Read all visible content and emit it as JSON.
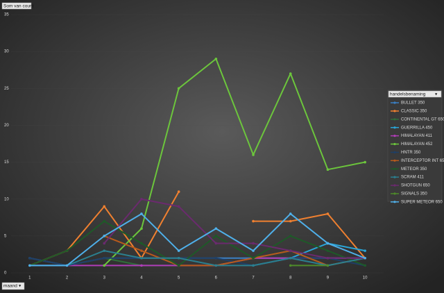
{
  "chart_data": {
    "type": "line",
    "value_field": "Som van count",
    "axis_field": "maand",
    "legend_title": "handelsbenaming",
    "x": [
      1,
      2,
      3,
      4,
      5,
      6,
      7,
      8,
      9,
      10
    ],
    "xlim": [
      0.5,
      10.5
    ],
    "xticks": [
      1,
      2,
      3,
      4,
      5,
      6,
      7,
      8,
      9,
      10
    ],
    "ylim": [
      0,
      35
    ],
    "yticks": [
      0,
      5,
      10,
      15,
      20,
      25,
      30,
      35
    ],
    "series": [
      {
        "name": "BULLET 350",
        "color": "#3a7fc4",
        "values": [
          2,
          1,
          2,
          2,
          2,
          2,
          2,
          2,
          2,
          2
        ]
      },
      {
        "name": "CLASSIC 350",
        "color": "#f08030",
        "values": [
          1,
          3,
          9,
          2,
          11,
          null,
          7,
          7,
          8,
          2
        ]
      },
      {
        "name": "CONTINENTAL GT 650",
        "color": "#2f6e3a",
        "values": [
          null,
          null,
          2,
          1,
          1,
          1,
          2,
          3,
          1,
          2
        ]
      },
      {
        "name": "GUERRILLA 450",
        "color": "#2aa6d8",
        "values": [
          null,
          null,
          null,
          null,
          null,
          null,
          1,
          2,
          4,
          3
        ]
      },
      {
        "name": "HIMALAYAN 411",
        "color": "#b03cb8",
        "values": [
          1,
          1,
          1,
          1,
          1,
          1,
          2,
          2,
          2,
          2
        ]
      },
      {
        "name": "HIMALAYAN 452",
        "color": "#6cc63c",
        "values": [
          null,
          null,
          1,
          6,
          25,
          29,
          16,
          27,
          14,
          15
        ]
      },
      {
        "name": "HNTR 350",
        "color": "#1f3f66",
        "values": [
          2,
          1,
          2,
          2,
          2,
          2,
          1,
          2,
          2,
          1
        ]
      },
      {
        "name": "INTERCEPTOR INT 650",
        "color": "#b85a1c",
        "values": [
          null,
          null,
          5,
          3,
          1,
          1,
          2,
          3,
          1,
          2
        ]
      },
      {
        "name": "METEOR 350",
        "color": "#1e5a28",
        "values": [
          1,
          3,
          7,
          4,
          1,
          5,
          2,
          5,
          3,
          1
        ]
      },
      {
        "name": "SCRAM 411",
        "color": "#2b7f8f",
        "values": [
          1,
          1,
          3,
          2,
          2,
          1,
          1,
          2,
          1,
          2
        ]
      },
      {
        "name": "SHOTGUN 650",
        "color": "#6b2a6e",
        "values": [
          null,
          null,
          4,
          10,
          9,
          4,
          4,
          3,
          2,
          2
        ]
      },
      {
        "name": "SIGNALS 350",
        "color": "#4e8a2a",
        "values": [
          null,
          null,
          null,
          null,
          null,
          null,
          null,
          1,
          1,
          null
        ]
      },
      {
        "name": "SUPER METEOR 650",
        "color": "#4fb0ea",
        "values": [
          1,
          1,
          5,
          8,
          3,
          6,
          3,
          8,
          4,
          2
        ]
      }
    ]
  }
}
